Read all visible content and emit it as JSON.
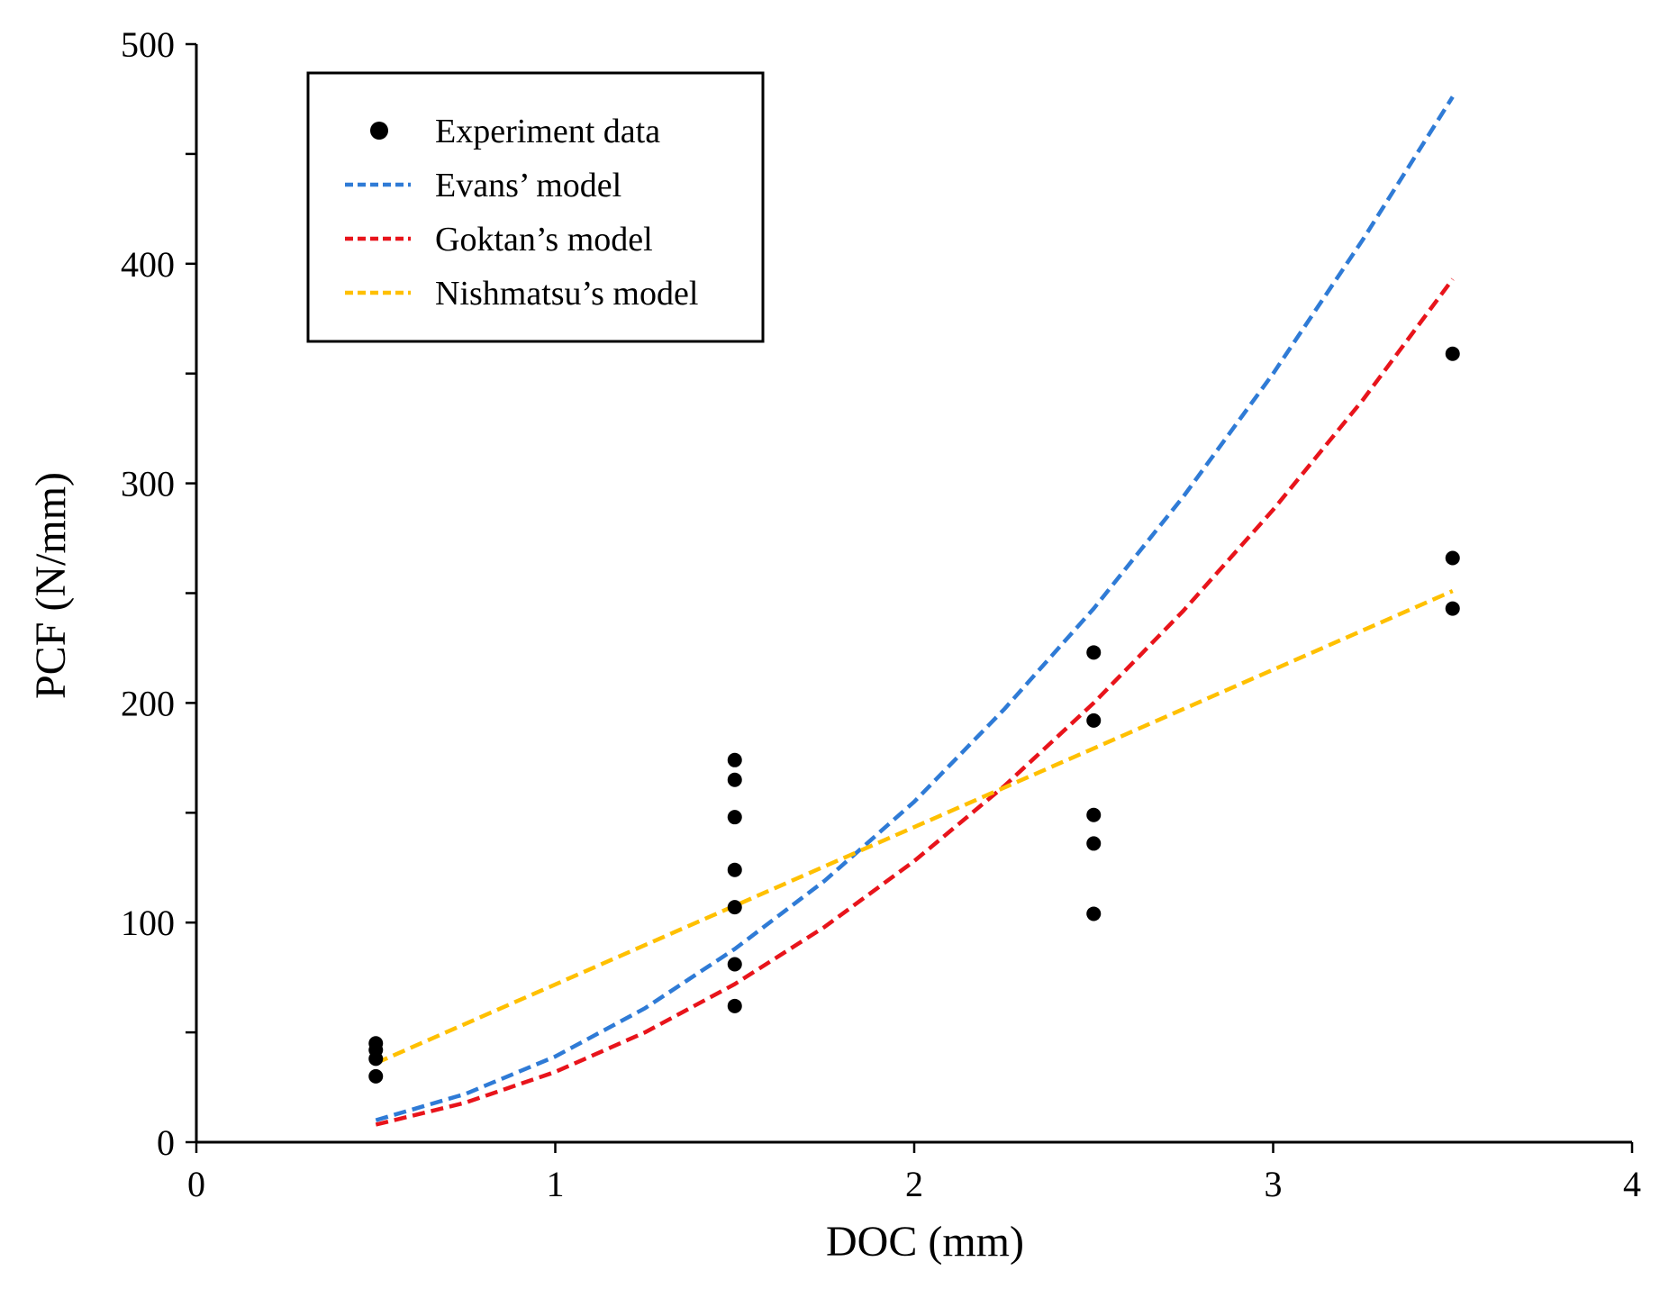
{
  "chart_data": {
    "type": "scatter",
    "title": "",
    "xlabel": "DOC (mm)",
    "ylabel": "PCF (N/mm)",
    "xlim": [
      0,
      4
    ],
    "ylim": [
      0,
      500
    ],
    "x_ticks": [
      0,
      1,
      2,
      3,
      4
    ],
    "y_ticks": [
      0,
      100,
      200,
      300,
      400,
      500
    ],
    "y_minor_step": 50,
    "grid": false,
    "legend_position": "top-left",
    "series": [
      {
        "name": "Experiment data",
        "kind": "scatter",
        "color": "#000000",
        "points": [
          {
            "x": 0.5,
            "y": 45
          },
          {
            "x": 0.5,
            "y": 42
          },
          {
            "x": 0.5,
            "y": 38
          },
          {
            "x": 0.5,
            "y": 30
          },
          {
            "x": 1.5,
            "y": 174
          },
          {
            "x": 1.5,
            "y": 165
          },
          {
            "x": 1.5,
            "y": 148
          },
          {
            "x": 1.5,
            "y": 124
          },
          {
            "x": 1.5,
            "y": 107
          },
          {
            "x": 1.5,
            "y": 81
          },
          {
            "x": 1.5,
            "y": 62
          },
          {
            "x": 2.5,
            "y": 223
          },
          {
            "x": 2.5,
            "y": 192
          },
          {
            "x": 2.5,
            "y": 149
          },
          {
            "x": 2.5,
            "y": 136
          },
          {
            "x": 2.5,
            "y": 104
          },
          {
            "x": 3.5,
            "y": 359
          },
          {
            "x": 3.5,
            "y": 266
          },
          {
            "x": 3.5,
            "y": 243
          }
        ]
      },
      {
        "name": "Evans’ model",
        "kind": "line",
        "color": "#2F7BD6",
        "x": [
          0.5,
          0.75,
          1.0,
          1.25,
          1.5,
          1.75,
          2.0,
          2.25,
          2.5,
          2.75,
          3.0,
          3.25,
          3.5
        ],
        "y": [
          10,
          22,
          39,
          61,
          88,
          119,
          155,
          197,
          243,
          294,
          350,
          411,
          476
        ]
      },
      {
        "name": "Goktan’s model",
        "kind": "line",
        "color": "#E8141B",
        "x": [
          0.5,
          0.75,
          1.0,
          1.25,
          1.5,
          1.75,
          2.0,
          2.25,
          2.5,
          2.75,
          3.0,
          3.25,
          3.5
        ],
        "y": [
          8,
          18,
          32,
          50,
          72,
          98,
          128,
          162,
          200,
          242,
          288,
          338,
          393
        ]
      },
      {
        "name": "Nishmatsu’s model",
        "kind": "line",
        "color": "#FFC000",
        "x": [
          0.5,
          3.5
        ],
        "y": [
          36,
          251
        ]
      }
    ]
  }
}
